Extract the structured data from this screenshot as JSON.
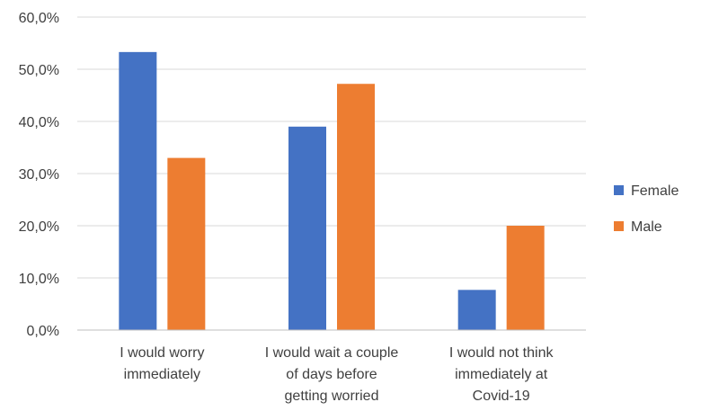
{
  "chart_data": {
    "type": "bar",
    "categories": [
      [
        "I would worry",
        "immediately"
      ],
      [
        "I would wait a couple",
        "of days before",
        "getting worried"
      ],
      [
        "I would not think",
        "immediately at",
        "Covid-19"
      ]
    ],
    "series": [
      {
        "name": "Female",
        "color": "#4472c4",
        "values": [
          53.3,
          39.0,
          7.7
        ]
      },
      {
        "name": "Male",
        "color": "#ed7d31",
        "values": [
          33.0,
          47.2,
          20.0
        ]
      }
    ],
    "ylim": [
      0,
      60
    ],
    "yticks": [
      "0,0%",
      "10,0%",
      "20,0%",
      "30,0%",
      "40,0%",
      "50,0%",
      "60,0%"
    ],
    "grid": true,
    "legend": "right",
    "title": "",
    "xlabel": "",
    "ylabel": ""
  }
}
